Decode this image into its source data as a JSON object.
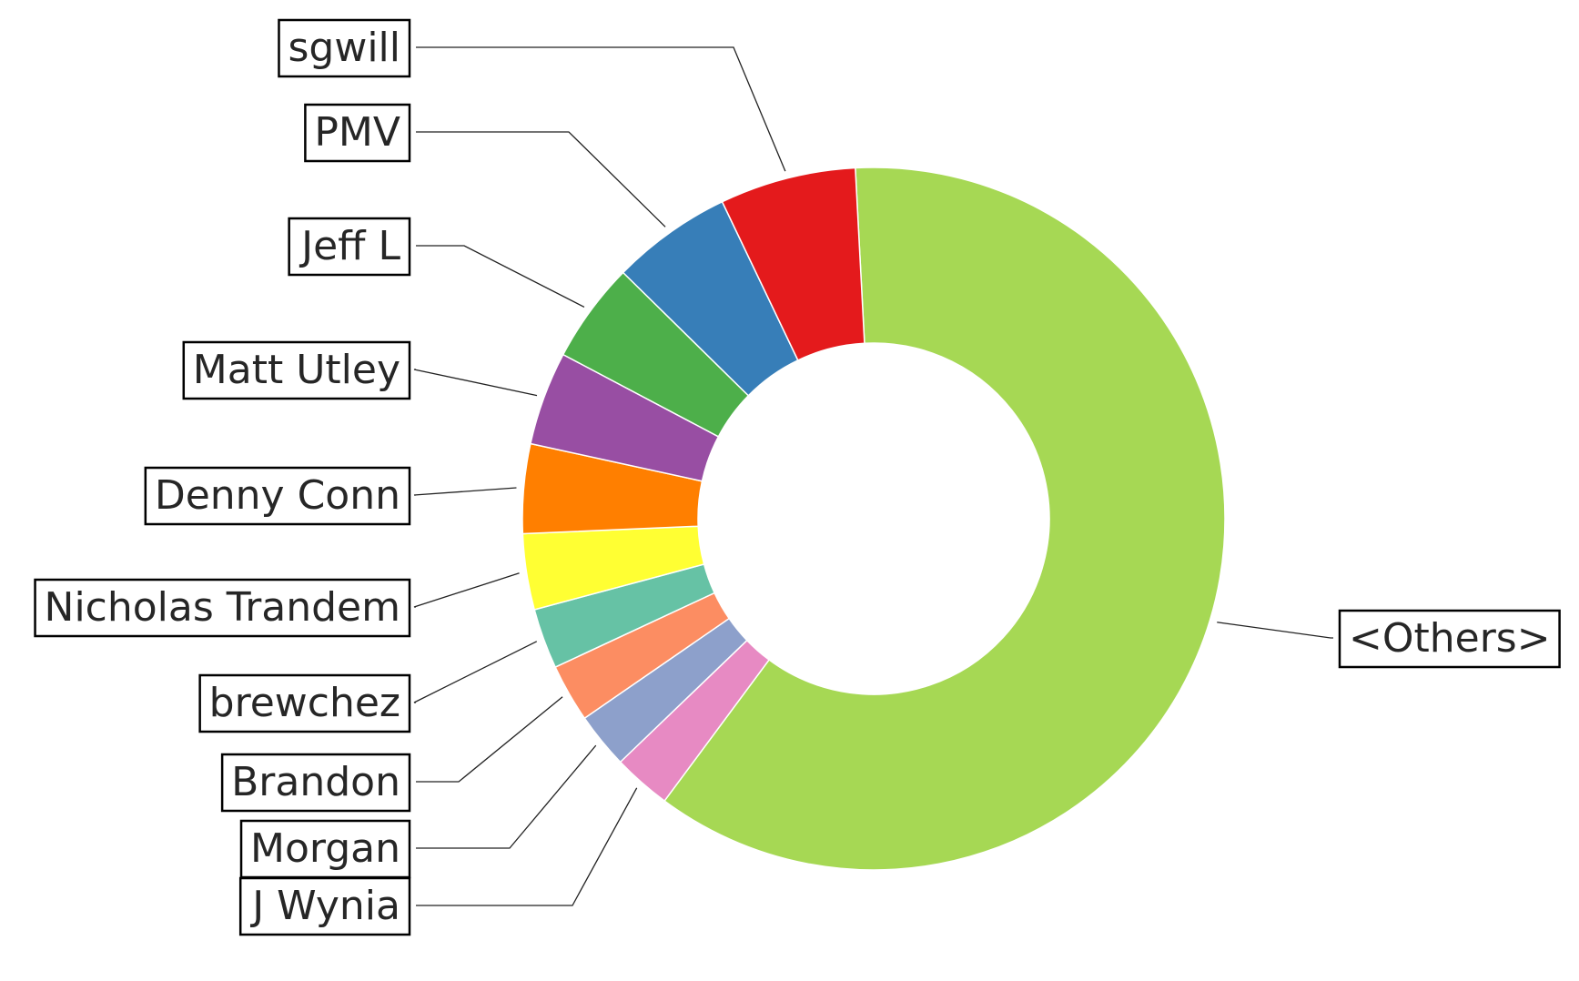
{
  "chart_data": {
    "type": "pie",
    "style": "donut",
    "slices": [
      {
        "label": "<Others>",
        "value": 59.4,
        "color": "#a6d854"
      },
      {
        "label": "J Wynia",
        "value": 2.6,
        "color": "#e78ac3"
      },
      {
        "label": "Morgan",
        "value": 2.5,
        "color": "#8da0cb"
      },
      {
        "label": "Brandon",
        "value": 2.6,
        "color": "#fc8d62"
      },
      {
        "label": "brewchez",
        "value": 2.7,
        "color": "#66c2a5"
      },
      {
        "label": "Nicholas Trandem",
        "value": 3.4,
        "color": "#ffff33"
      },
      {
        "label": "Denny Conn",
        "value": 4.0,
        "color": "#ff7f00"
      },
      {
        "label": "Matt Utley",
        "value": 4.2,
        "color": "#984ea3"
      },
      {
        "label": "Jeff L",
        "value": 4.5,
        "color": "#4daf4a"
      },
      {
        "label": "PMV",
        "value": 5.4,
        "color": "#377eb8"
      },
      {
        "label": "sgwill",
        "value": 6.1,
        "color": "#e41a1c"
      }
    ]
  }
}
